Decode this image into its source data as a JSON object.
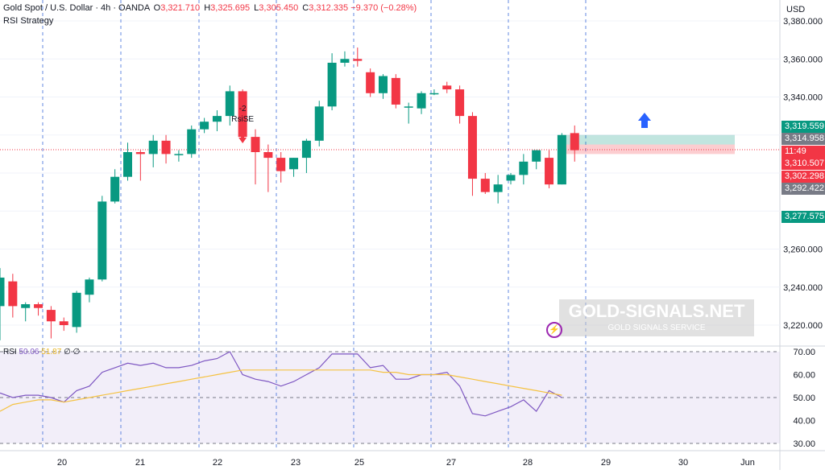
{
  "header": {
    "symbol": "Gold Spot / U.S. Dollar · 4h · OANDA",
    "open_label": "O",
    "open": "3,321.710",
    "high_label": "H",
    "high": "3,325.695",
    "low_label": "L",
    "low": "3,305.450",
    "close_label": "C",
    "close": "3,312.335",
    "change": "−9.370 (−0.28%)",
    "strategy": "RSI Strategy"
  },
  "currency": "USD",
  "price_axis": {
    "labels": [
      "3,380.000",
      "3,360.000",
      "3,340.000",
      "3,260.000",
      "3,240.000",
      "3,220.000"
    ],
    "badges": [
      {
        "text": "3,319.559",
        "color": "#089981"
      },
      {
        "text": "3,314.958",
        "color": "#787b86"
      },
      {
        "text": "11:49",
        "color": "#f23645"
      },
      {
        "text": "3,310.507",
        "color": "#f23645"
      },
      {
        "text": "3,302.298",
        "color": "#f23645"
      },
      {
        "text": "3,292.422",
        "color": "#787b86"
      },
      {
        "text": "3,277.575",
        "color": "#089981"
      }
    ]
  },
  "rsi_axis": {
    "labels": [
      "70.00",
      "60.00",
      "50.00",
      "40.00",
      "30.00"
    ]
  },
  "time_axis": {
    "labels": [
      "20",
      "21",
      "22",
      "23",
      "25",
      "27",
      "28",
      "29",
      "30",
      "Jun"
    ]
  },
  "rsi_header": {
    "name": "RSI",
    "rsi": "50.06",
    "ma": "51.87",
    "extra": "∅ ∅"
  },
  "signal": {
    "count": "-2",
    "label": "RsiSE"
  },
  "watermark": {
    "title": "GOLD-SIGNALS.NET",
    "subtitle": "GOLD SIGNALS SERVICE"
  },
  "colors": {
    "up": "#089981",
    "down": "#f23645",
    "rsi": "#7e57c2",
    "rsi_ma": "#f5c242",
    "grid": "#3d6cdb"
  },
  "chart_data": {
    "type": "candlestick",
    "ylim": [
      3212,
      3386
    ],
    "candles": [
      {
        "o": 3230,
        "h": 3250,
        "l": 3212,
        "c": 3245
      },
      {
        "o": 3243,
        "h": 3247,
        "l": 3224,
        "c": 3230
      },
      {
        "o": 3229,
        "h": 3232,
        "l": 3222,
        "c": 3231
      },
      {
        "o": 3231,
        "h": 3232,
        "l": 3225,
        "c": 3229
      },
      {
        "o": 3228,
        "h": 3230,
        "l": 3213,
        "c": 3222
      },
      {
        "o": 3222,
        "h": 3224,
        "l": 3217,
        "c": 3220
      },
      {
        "o": 3219,
        "h": 3238,
        "l": 3216,
        "c": 3237
      },
      {
        "o": 3236,
        "h": 3245,
        "l": 3232,
        "c": 3244
      },
      {
        "o": 3244,
        "h": 3288,
        "l": 3243,
        "c": 3285
      },
      {
        "o": 3285,
        "h": 3302,
        "l": 3284,
        "c": 3298
      },
      {
        "o": 3298,
        "h": 3316,
        "l": 3296,
        "c": 3311
      },
      {
        "o": 3311,
        "h": 3312,
        "l": 3296,
        "c": 3310
      },
      {
        "o": 3310,
        "h": 3320,
        "l": 3303,
        "c": 3317
      },
      {
        "o": 3317,
        "h": 3320,
        "l": 3305,
        "c": 3310
      },
      {
        "o": 3310,
        "h": 3312,
        "l": 3306,
        "c": 3310
      },
      {
        "o": 3310,
        "h": 3325,
        "l": 3308,
        "c": 3323
      },
      {
        "o": 3323,
        "h": 3329,
        "l": 3321,
        "c": 3327
      },
      {
        "o": 3327,
        "h": 3333,
        "l": 3322,
        "c": 3330
      },
      {
        "o": 3330,
        "h": 3346,
        "l": 3325,
        "c": 3343
      },
      {
        "o": 3343,
        "h": 3344,
        "l": 3316,
        "c": 3319
      },
      {
        "o": 3319,
        "h": 3323,
        "l": 3294,
        "c": 3311
      },
      {
        "o": 3311,
        "h": 3315,
        "l": 3290,
        "c": 3308
      },
      {
        "o": 3308,
        "h": 3311,
        "l": 3295,
        "c": 3301
      },
      {
        "o": 3302,
        "h": 3308,
        "l": 3298,
        "c": 3308
      },
      {
        "o": 3308,
        "h": 3318,
        "l": 3300,
        "c": 3317
      },
      {
        "o": 3317,
        "h": 3338,
        "l": 3314,
        "c": 3335
      },
      {
        "o": 3335,
        "h": 3363,
        "l": 3333,
        "c": 3358
      },
      {
        "o": 3358,
        "h": 3364,
        "l": 3356,
        "c": 3360
      },
      {
        "o": 3360,
        "h": 3366,
        "l": 3356,
        "c": 3359
      },
      {
        "o": 3353,
        "h": 3355,
        "l": 3340,
        "c": 3342
      },
      {
        "o": 3342,
        "h": 3352,
        "l": 3339,
        "c": 3351
      },
      {
        "o": 3350,
        "h": 3352,
        "l": 3334,
        "c": 3336
      },
      {
        "o": 3335,
        "h": 3337,
        "l": 3326,
        "c": 3335
      },
      {
        "o": 3334,
        "h": 3343,
        "l": 3331,
        "c": 3342
      },
      {
        "o": 3342,
        "h": 3344,
        "l": 3341,
        "c": 3342
      },
      {
        "o": 3346,
        "h": 3348,
        "l": 3342,
        "c": 3344
      },
      {
        "o": 3344,
        "h": 3346,
        "l": 3326,
        "c": 3330
      },
      {
        "o": 3330,
        "h": 3332,
        "l": 3288,
        "c": 3297
      },
      {
        "o": 3297,
        "h": 3300,
        "l": 3289,
        "c": 3290
      },
      {
        "o": 3290,
        "h": 3299,
        "l": 3284,
        "c": 3294
      },
      {
        "o": 3296,
        "h": 3300,
        "l": 3294,
        "c": 3299
      },
      {
        "o": 3299,
        "h": 3310,
        "l": 3294,
        "c": 3306
      },
      {
        "o": 3306,
        "h": 3312,
        "l": 3302,
        "c": 3312
      },
      {
        "o": 3308,
        "h": 3312,
        "l": 3292,
        "c": 3294
      },
      {
        "o": 3294,
        "h": 3321,
        "l": 3294,
        "c": 3320
      },
      {
        "o": 3321,
        "h": 3325,
        "l": 3306,
        "c": 3312
      }
    ],
    "rsi": [
      52,
      50,
      51,
      51,
      50,
      48,
      53,
      55,
      61,
      63,
      65,
      64,
      65,
      63,
      63,
      64,
      66,
      67,
      70,
      60,
      58,
      57,
      55,
      57,
      60,
      63,
      69,
      69,
      69,
      63,
      64,
      58,
      58,
      60,
      60,
      61,
      55,
      43,
      42,
      44,
      46,
      49,
      44,
      53,
      50
    ],
    "rsi_ma": [
      44,
      47,
      48,
      49,
      49,
      48,
      49,
      50,
      51,
      52,
      53,
      54,
      55,
      56,
      57,
      58,
      59,
      60,
      61,
      62,
      62,
      62,
      62,
      62,
      62,
      62,
      62,
      62,
      62,
      62,
      61,
      61,
      60,
      60,
      60,
      60,
      59,
      58,
      57,
      56,
      55,
      54,
      53,
      52,
      51
    ],
    "rsi_ylim": [
      28,
      72
    ],
    "rsi_levels": [
      70,
      50,
      30
    ]
  }
}
